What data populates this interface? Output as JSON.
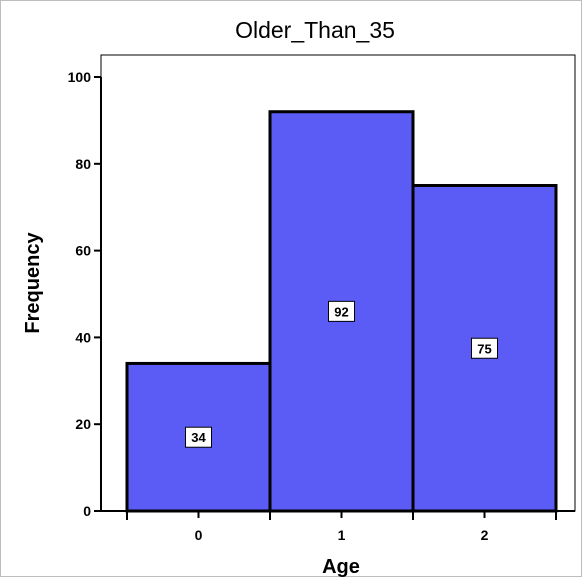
{
  "chart_data": {
    "type": "bar",
    "title": "Older_Than_35",
    "xlabel": "Age",
    "ylabel": "Frequency",
    "categories": [
      "0",
      "1",
      "2"
    ],
    "values": [
      34,
      92,
      75
    ],
    "data_labels": [
      "34",
      "92",
      "75"
    ],
    "ylim": [
      0,
      100
    ],
    "yticks": [
      0,
      20,
      40,
      60,
      80,
      100
    ],
    "ytick_labels": [
      "0",
      "20",
      "40",
      "60",
      "80",
      "100"
    ],
    "grid": false,
    "legend": "none",
    "colors": {
      "bar_fill": "#5a5cf5",
      "bar_stroke": "#000000",
      "plot_frame": "#000000"
    }
  }
}
